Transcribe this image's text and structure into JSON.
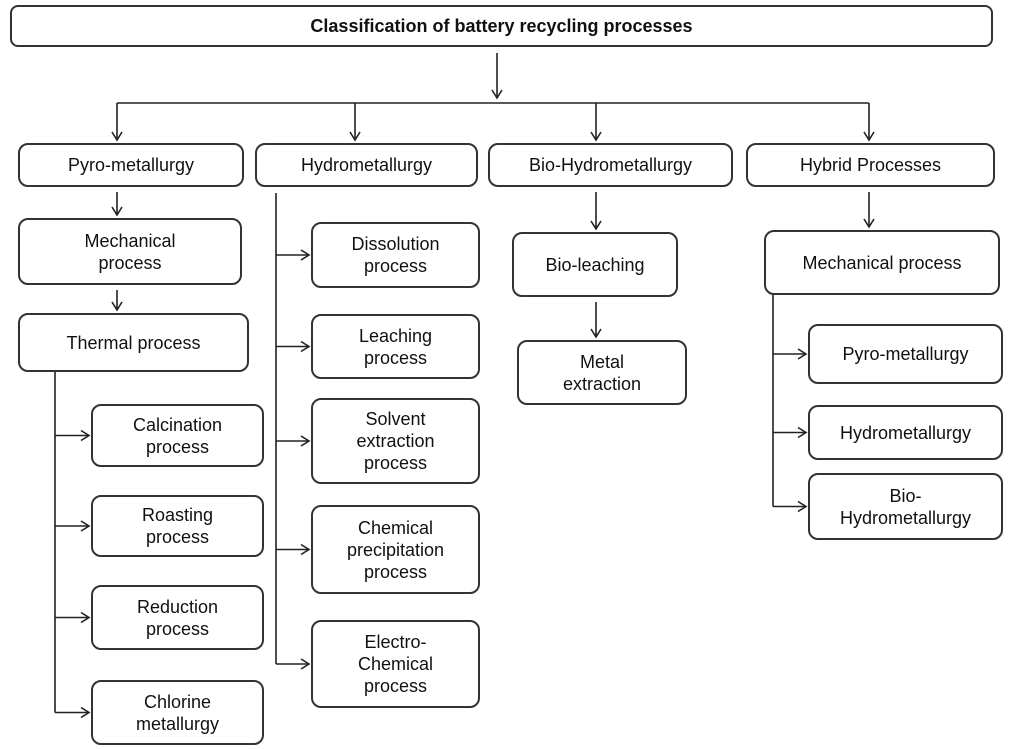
{
  "title": "Classification of battery recycling processes",
  "columns": [
    {
      "label": "Pyro-metallurgy",
      "steps": [
        "Mechanical\nprocess",
        "Thermal process"
      ],
      "children": [
        "Calcination\nprocess",
        "Roasting\nprocess",
        "Reduction\nprocess",
        "Chlorine\nmetallurgy"
      ]
    },
    {
      "label": "Hydrometallurgy",
      "steps": [],
      "children": [
        "Dissolution\nprocess",
        "Leaching\nprocess",
        "Solvent\nextraction\nprocess",
        "Chemical\nprecipitation\nprocess",
        "Electro-\nChemical\nprocess"
      ]
    },
    {
      "label": "Bio-Hydrometallurgy",
      "steps": [
        "Bio-leaching",
        "Metal\nextraction"
      ],
      "children": []
    },
    {
      "label": "Hybrid Processes",
      "steps": [
        "Mechanical process"
      ],
      "children": [
        "Pyro-metallurgy",
        "Hydrometallurgy",
        "Bio-\nHydrometallurgy"
      ]
    }
  ]
}
